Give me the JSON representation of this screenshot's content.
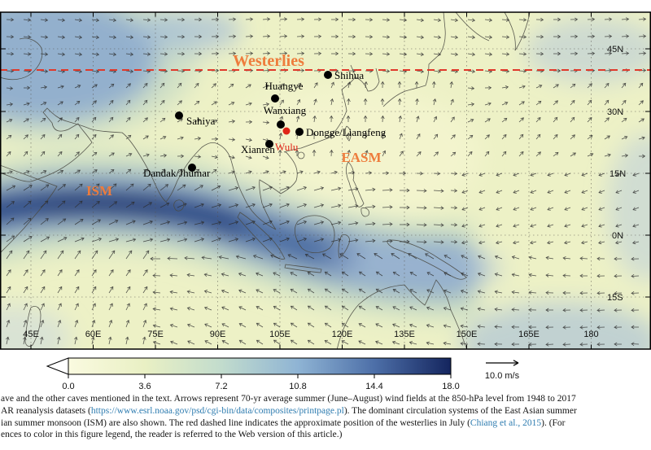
{
  "map": {
    "region_labels": {
      "westerlies": "Westerlies",
      "ism": "ISM",
      "easm": "EASM"
    },
    "accent_color": "#ee7c3c",
    "westerlies_line_color": "#e0392b",
    "sites": [
      {
        "label": "Shihua"
      },
      {
        "label": "Huangye"
      },
      {
        "label": "Wanxiang"
      },
      {
        "label": "Sahiya"
      },
      {
        "label": "Dongge/Liangfeng"
      },
      {
        "label": "Wulu",
        "marker_color": "#e02518"
      },
      {
        "label": "Xianren"
      },
      {
        "label": "Dandak/Jhumar"
      }
    ],
    "lat_ticks": [
      "45N",
      "30N",
      "15N",
      "0N",
      "15S"
    ],
    "lon_ticks": [
      "45E",
      "60E",
      "75E",
      "90E",
      "105E",
      "120E",
      "135E",
      "150E",
      "165E",
      "180"
    ]
  },
  "colorbar": {
    "ticks": [
      "0.0",
      "3.6",
      "7.2",
      "10.8",
      "14.4",
      "18.0"
    ],
    "unit_label": "10.0 m/s",
    "min_color": "#fafae0",
    "max_color": "#14255e"
  },
  "caption": {
    "line1": "ave and the other caves mentioned in the text. Arrows represent 70-yr average summer (June–August) wind fields at the 850-hPa level from 1948 to 2017",
    "line2a": "AR reanalysis datasets (",
    "line2_link": "https://www.esrl.noaa.gov/psd/cgi-bin/data/composites/printpage.pl",
    "line2b": "). The dominant circulation systems of the East Asian summer",
    "line3a": "ian summer monsoon (ISM) are also shown. The red dashed line indicates the approximate position of the westerlies in July (",
    "line3_link": "Chiang et al., 2015",
    "line3b": "). (For",
    "line4": "ences to color in this figure legend, the reader is referred to the Web version of this article.)"
  }
}
